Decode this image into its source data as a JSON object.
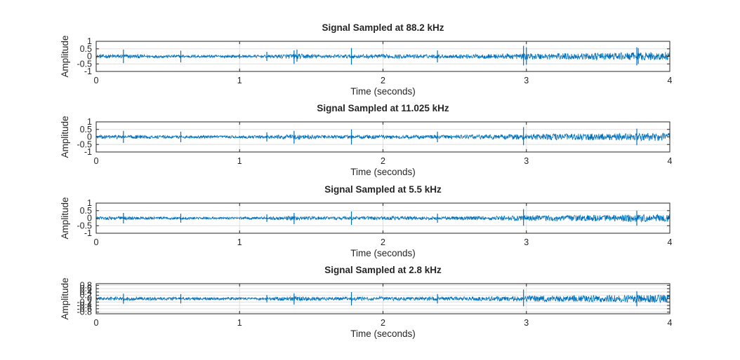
{
  "colors": {
    "line": "#0072BD",
    "axis": "#262626",
    "grid": "#DFDFDF",
    "background": "#FFFFFF"
  },
  "chart_data": [
    {
      "type": "line",
      "title": "Signal Sampled at 88.2 kHz",
      "xlabel": "Time (seconds)",
      "ylabel": "Amplitude",
      "xlim": [
        0,
        4
      ],
      "ylim": [
        -1,
        1
      ],
      "xticks": [
        0,
        1,
        2,
        3,
        4
      ],
      "yticks": [
        1,
        0.5,
        0,
        -0.5,
        -1
      ],
      "yticklabels": [
        "1",
        "0.5",
        "0",
        "-0.5",
        "-1"
      ],
      "grid": true,
      "series": [
        {
          "x": [
            0,
            0.2,
            0.4,
            0.6,
            0.8,
            1.0,
            1.2,
            1.4,
            1.6,
            1.8,
            2.0,
            2.2,
            2.4,
            2.6,
            2.8,
            3.0,
            3.2,
            3.4,
            3.6,
            3.8,
            4.0
          ],
          "envelope": [
            0.12,
            0.14,
            0.1,
            0.1,
            0.09,
            0.09,
            0.1,
            0.18,
            0.11,
            0.13,
            0.14,
            0.13,
            0.12,
            0.14,
            0.16,
            0.2,
            0.22,
            0.22,
            0.24,
            0.26,
            0.3
          ],
          "spikes": [
            {
              "x": 0.19,
              "y": [
                -0.45,
                0.45
              ]
            },
            {
              "x": 0.59,
              "y": [
                -0.4,
                0.38
              ]
            },
            {
              "x": 1.0,
              "y": [
                -0.15,
                0.15
              ]
            },
            {
              "x": 1.19,
              "y": [
                -0.3,
                0.3
              ]
            },
            {
              "x": 1.38,
              "y": [
                -0.5,
                0.4
              ]
            },
            {
              "x": 1.4,
              "y": [
                -0.35,
                0.45
              ]
            },
            {
              "x": 1.78,
              "y": [
                -0.55,
                0.55
              ]
            },
            {
              "x": 2.38,
              "y": [
                -0.4,
                0.4
              ]
            },
            {
              "x": 2.98,
              "y": [
                -0.6,
                0.7
              ]
            },
            {
              "x": 3.0,
              "y": [
                -0.55,
                0.6
              ]
            },
            {
              "x": 3.77,
              "y": [
                -0.6,
                0.6
              ]
            },
            {
              "x": 3.78,
              "y": [
                -0.5,
                0.55
              ]
            }
          ]
        }
      ]
    },
    {
      "type": "line",
      "title": "Signal Sampled at 11.025 kHz",
      "xlabel": "Time (seconds)",
      "ylabel": "Amplitude",
      "xlim": [
        0,
        4
      ],
      "ylim": [
        -1,
        1
      ],
      "xticks": [
        0,
        1,
        2,
        3,
        4
      ],
      "yticks": [
        1,
        0.5,
        0,
        -0.5,
        -1
      ],
      "yticklabels": [
        "1",
        "0.5",
        "0",
        "-0.5",
        "-1"
      ],
      "grid": true,
      "series": [
        {
          "x": [
            0,
            0.2,
            0.4,
            0.6,
            0.8,
            1.0,
            1.2,
            1.4,
            1.6,
            1.8,
            2.0,
            2.2,
            2.4,
            2.6,
            2.8,
            3.0,
            3.2,
            3.4,
            3.6,
            3.8,
            4.0
          ],
          "envelope": [
            0.12,
            0.13,
            0.1,
            0.1,
            0.09,
            0.09,
            0.1,
            0.17,
            0.11,
            0.13,
            0.13,
            0.13,
            0.12,
            0.14,
            0.16,
            0.19,
            0.21,
            0.21,
            0.23,
            0.25,
            0.28
          ],
          "spikes": [
            {
              "x": 0.19,
              "y": [
                -0.4,
                0.4
              ]
            },
            {
              "x": 0.59,
              "y": [
                -0.35,
                0.35
              ]
            },
            {
              "x": 1.19,
              "y": [
                -0.3,
                0.3
              ]
            },
            {
              "x": 1.38,
              "y": [
                -0.45,
                0.4
              ]
            },
            {
              "x": 1.78,
              "y": [
                -0.5,
                0.5
              ]
            },
            {
              "x": 2.38,
              "y": [
                -0.35,
                0.35
              ]
            },
            {
              "x": 2.98,
              "y": [
                -0.55,
                0.65
              ]
            },
            {
              "x": 3.77,
              "y": [
                -0.55,
                0.55
              ]
            }
          ]
        }
      ]
    },
    {
      "type": "line",
      "title": "Signal Sampled at 5.5 kHz",
      "xlabel": "Time (seconds)",
      "ylabel": "Amplitude",
      "xlim": [
        0,
        4
      ],
      "ylim": [
        -1,
        1
      ],
      "xticks": [
        0,
        1,
        2,
        3,
        4
      ],
      "yticks": [
        1,
        0.5,
        0,
        -0.5,
        -1
      ],
      "yticklabels": [
        "1",
        "0.5",
        "0",
        "-0.5",
        "-1"
      ],
      "grid": true,
      "series": [
        {
          "x": [
            0,
            0.2,
            0.4,
            0.6,
            0.8,
            1.0,
            1.2,
            1.4,
            1.6,
            1.8,
            2.0,
            2.2,
            2.4,
            2.6,
            2.8,
            3.0,
            3.2,
            3.4,
            3.6,
            3.8,
            4.0
          ],
          "envelope": [
            0.11,
            0.12,
            0.09,
            0.09,
            0.08,
            0.08,
            0.09,
            0.15,
            0.1,
            0.12,
            0.12,
            0.12,
            0.11,
            0.13,
            0.15,
            0.18,
            0.2,
            0.2,
            0.22,
            0.24,
            0.26
          ],
          "spikes": [
            {
              "x": 0.19,
              "y": [
                -0.35,
                0.35
              ]
            },
            {
              "x": 0.59,
              "y": [
                -0.3,
                0.3
              ]
            },
            {
              "x": 1.19,
              "y": [
                -0.25,
                0.25
              ]
            },
            {
              "x": 1.38,
              "y": [
                -0.4,
                0.35
              ]
            },
            {
              "x": 1.78,
              "y": [
                -0.45,
                0.45
              ]
            },
            {
              "x": 2.38,
              "y": [
                -0.3,
                0.3
              ]
            },
            {
              "x": 2.98,
              "y": [
                -0.5,
                0.6
              ]
            },
            {
              "x": 3.77,
              "y": [
                -0.5,
                0.5
              ]
            }
          ]
        }
      ]
    },
    {
      "type": "line",
      "title": "Signal Sampled at 2.8 kHz",
      "xlabel": "Time (seconds)",
      "ylabel": "Amplitude",
      "xlim": [
        0,
        4
      ],
      "ylim": [
        -0.9,
        0.9
      ],
      "xticks": [
        0,
        1,
        2,
        3,
        4
      ],
      "yticks": [
        0.8,
        0.6,
        0.4,
        0.2,
        0,
        -0.2,
        -0.4,
        -0.6,
        -0.8
      ],
      "yticklabels": [
        "0.8",
        "0.6",
        "0.4",
        "0.2",
        "0",
        "-0.2",
        "-0.4",
        "-0.6",
        "-0.8"
      ],
      "grid": true,
      "series": [
        {
          "x": [
            0,
            0.2,
            0.4,
            0.6,
            0.8,
            1.0,
            1.2,
            1.4,
            1.6,
            1.8,
            2.0,
            2.2,
            2.4,
            2.6,
            2.8,
            3.0,
            3.2,
            3.4,
            3.6,
            3.8,
            4.0
          ],
          "envelope": [
            0.1,
            0.11,
            0.09,
            0.09,
            0.08,
            0.08,
            0.09,
            0.14,
            0.1,
            0.11,
            0.12,
            0.11,
            0.11,
            0.12,
            0.14,
            0.17,
            0.19,
            0.19,
            0.21,
            0.23,
            0.25
          ],
          "spikes": [
            {
              "x": 0.19,
              "y": [
                -0.3,
                0.3
              ]
            },
            {
              "x": 0.59,
              "y": [
                -0.28,
                0.28
              ]
            },
            {
              "x": 1.19,
              "y": [
                -0.22,
                0.22
              ]
            },
            {
              "x": 1.38,
              "y": [
                -0.35,
                0.32
              ]
            },
            {
              "x": 1.78,
              "y": [
                -0.4,
                0.4
              ]
            },
            {
              "x": 2.38,
              "y": [
                -0.28,
                0.28
              ]
            },
            {
              "x": 2.98,
              "y": [
                -0.45,
                0.55
              ]
            },
            {
              "x": 3.77,
              "y": [
                -0.45,
                0.45
              ]
            }
          ]
        }
      ]
    }
  ]
}
